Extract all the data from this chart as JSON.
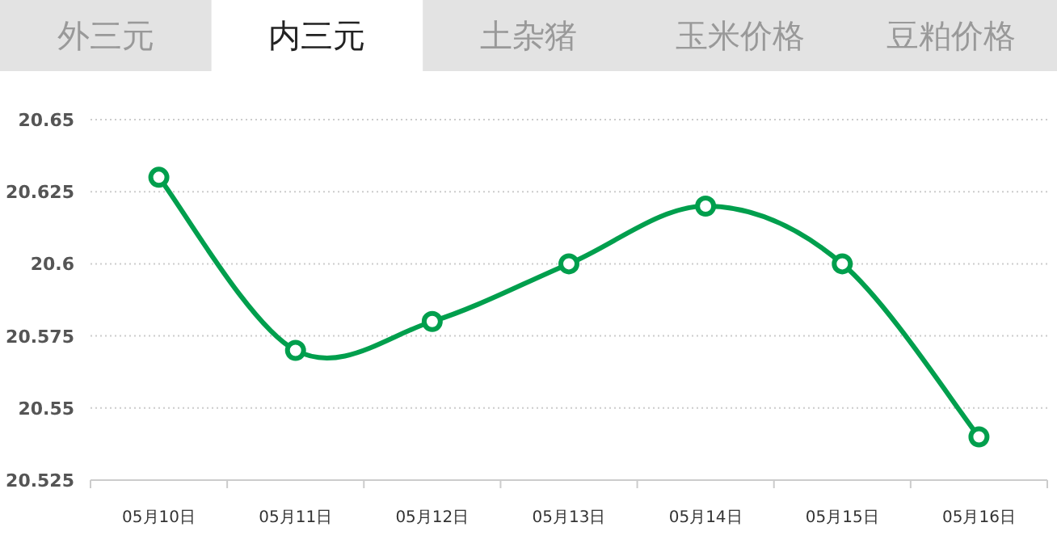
{
  "chart_data": {
    "type": "line",
    "annotations": [
      "外三元",
      "内三元",
      "土杂猪",
      "玉米价格",
      "豆粕价格"
    ],
    "categories": [
      "05月10日",
      "05月11日",
      "05月12日",
      "05月13日",
      "05月14日",
      "05月15日",
      "05月16日"
    ],
    "series": [
      {
        "color": "#009f4d",
        "values": [
          20.63,
          20.57,
          20.58,
          20.6,
          20.62,
          20.6,
          20.54
        ]
      }
    ],
    "ylim": [
      20.525,
      20.65
    ],
    "yticks": [
      20.525,
      20.55,
      20.575,
      20.6,
      20.625,
      20.65
    ],
    "grid": "y",
    "marker": "circle",
    "line_style": "solid"
  }
}
